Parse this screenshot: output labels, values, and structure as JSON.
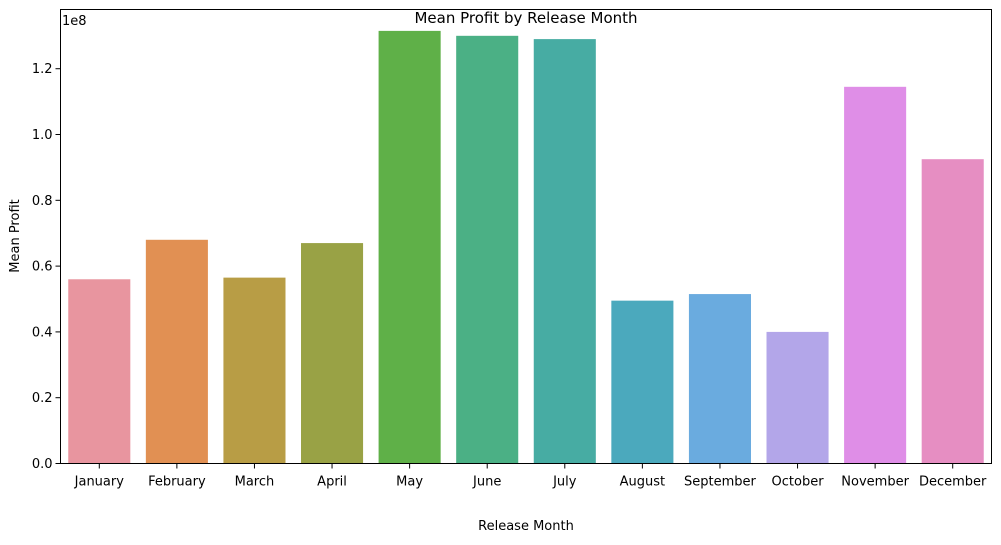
{
  "chart_data": {
    "type": "bar",
    "title": "Mean Profit by Release Month",
    "xlabel": "Release Month",
    "ylabel": "Mean Profit",
    "offset_text": "1e8",
    "scale": 100000000,
    "ylim": [
      0,
      1.38
    ],
    "yticks": [
      0.0,
      0.2,
      0.4,
      0.6,
      0.8,
      1.0,
      1.2
    ],
    "ytick_labels": [
      "0.0",
      "0.2",
      "0.4",
      "0.6",
      "0.8",
      "1.0",
      "1.2"
    ],
    "categories": [
      "January",
      "February",
      "March",
      "April",
      "May",
      "June",
      "July",
      "August",
      "September",
      "October",
      "November",
      "December"
    ],
    "values": [
      0.56,
      0.68,
      0.565,
      0.67,
      1.315,
      1.3,
      1.29,
      0.495,
      0.515,
      0.4,
      1.145,
      0.925
    ],
    "colors": [
      "#e8959f",
      "#e19053",
      "#b89d45",
      "#99a245",
      "#5fb048",
      "#4bb085",
      "#47aca3",
      "#4ba9bd",
      "#6aabdf",
      "#b3a6e9",
      "#df8ee7",
      "#e68ec2"
    ],
    "grid": false,
    "legend": "none"
  }
}
